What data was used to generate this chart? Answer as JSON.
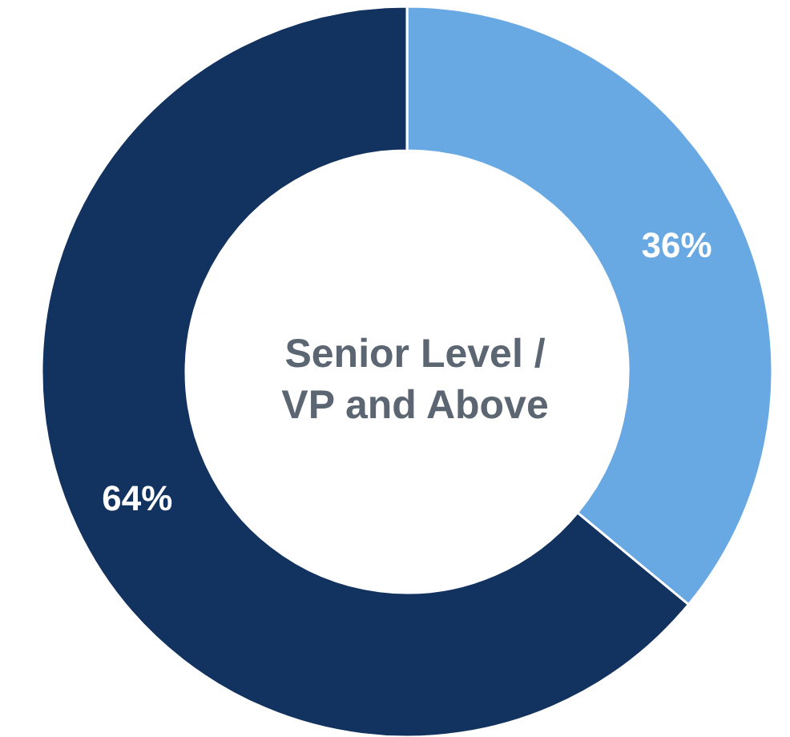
{
  "chart_data": {
    "type": "donut",
    "title": "Senior Level /\nVP and Above",
    "categories": [
      null,
      null
    ],
    "values": [
      36,
      64
    ],
    "value_labels": [
      "36%",
      "64%"
    ],
    "colors": [
      "#69a9e3",
      "#12325f"
    ]
  }
}
